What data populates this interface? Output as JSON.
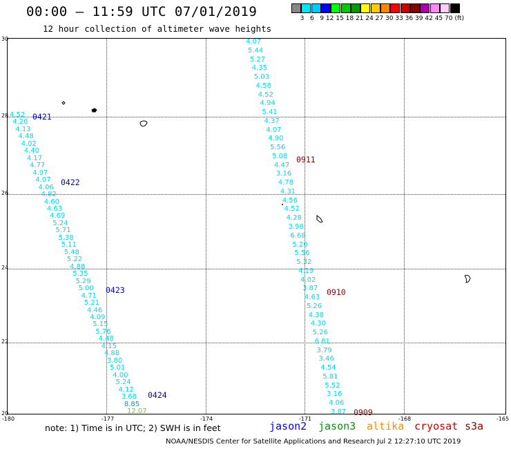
{
  "title": "00:00 — 11:59 UTC 07/01/2019",
  "subtitle": "12 hour collection of altimeter wave heights",
  "scale": {
    "labels": [
      "3",
      "6",
      "9",
      "12",
      "15",
      "18",
      "21",
      "24",
      "27",
      "30",
      "33",
      "36",
      "39",
      "42",
      "45",
      "70"
    ],
    "unit": "(ft)",
    "colors": [
      "#888888",
      "#00e5ff",
      "#00ccff",
      "#0000ff",
      "#00ff00",
      "#00cc00",
      "#009900",
      "#ffff00",
      "#ffcc00",
      "#ff8800",
      "#ff0000",
      "#cc0000",
      "#880000",
      "#aa00aa",
      "#ff88ff",
      "#ffccff",
      "#000000"
    ]
  },
  "axes": {
    "lat_labels": [
      "30",
      "28",
      "26",
      "24",
      "22",
      "20"
    ],
    "lon_labels": [
      "-180",
      "-177",
      "-174",
      "-171",
      "-168",
      "-165"
    ]
  },
  "colors": {
    "swh_cyan": "#00d8e8",
    "swh_teal": "#00a0a8",
    "swh_green": "#66cc33",
    "time_blue": "#0000cc",
    "time_darkred": "#8b0000",
    "jason2": "#0000ff",
    "jason3": "#009900",
    "altika": "#ff8c00",
    "cryosat": "#cc0000",
    "s3a": "#8b0000"
  },
  "track1": {
    "values": [
      "4.52",
      "4.26",
      "4.13",
      "4.48",
      "4.02",
      "4.40",
      "4.17",
      "4.77",
      "4.97",
      "4.07",
      "4.06",
      "4.82",
      "4.60",
      "4.63",
      "4.69",
      "5.24",
      "5.71",
      "5.38",
      "5.11",
      "5.48",
      "5.22",
      "4.88",
      "5.35",
      "5.29",
      "5.00",
      "4.71",
      "5.21",
      "4.46",
      "4.09",
      "5.15",
      "5.76",
      "4.48",
      "4.15",
      "4.88",
      "3.80",
      "5.01",
      "4.00",
      "5.24",
      "4.12",
      "3.68",
      "8.85",
      "12.07"
    ],
    "times": [
      "0421",
      "0422",
      "0423",
      "0424"
    ]
  },
  "track2": {
    "values": [
      "4.07",
      "5.44",
      "5.27",
      "4.35",
      "5.03",
      "4.58",
      "4.52",
      "4.94",
      "5.41",
      "4.37",
      "4.07",
      "4.90",
      "5.56",
      "5.08",
      "4.47",
      "3.16",
      "4.78",
      "4.31",
      "4.56",
      "4.52",
      "4.28",
      "3.98",
      "6.68",
      "5.20",
      "5.56",
      "5.32",
      "4.19",
      "4.02",
      "3.87",
      "4.63",
      "5.26",
      "4.38",
      "4.30",
      "5.26",
      "6.81",
      "3.79",
      "3.46",
      "4.54",
      "5.81",
      "5.52",
      "3.16",
      "4.06",
      "3.87"
    ],
    "times": [
      "0911",
      "0910",
      "0909"
    ]
  },
  "note": "note: 1) Time is in UTC; 2) SWH is in feet",
  "missions": [
    "jason2",
    "jason3",
    "altika",
    "cryosat",
    "s3a"
  ],
  "credit": "NOAA/NESDIS Center for Satellite Applications and Research    Jul  2 12:27:10 UTC 2019"
}
